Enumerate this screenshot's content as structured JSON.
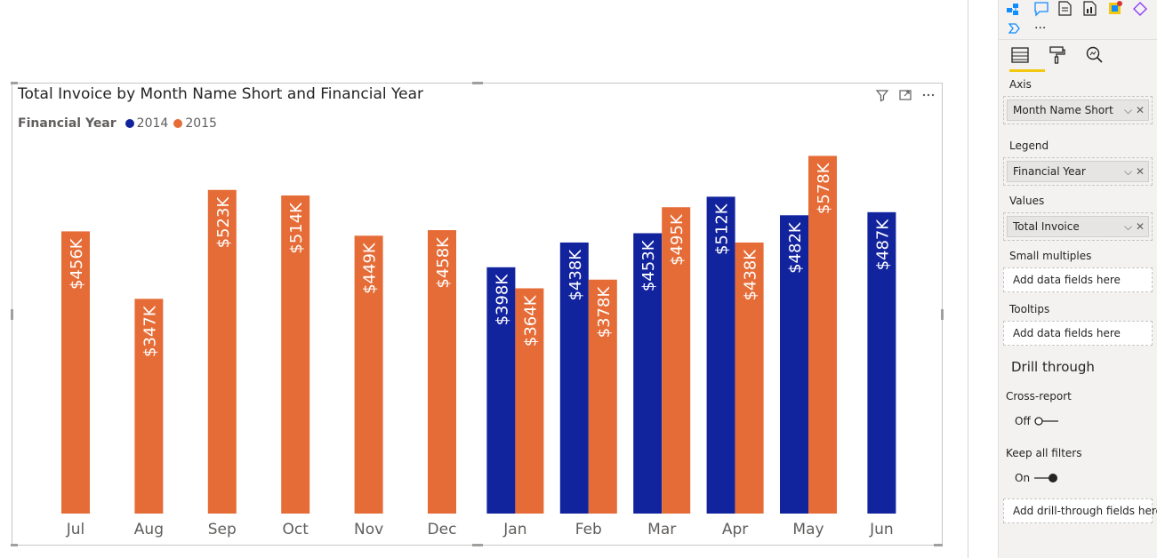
{
  "visual": {
    "title": "Total Invoice by Month Name Short and Financial Year",
    "legend_title": "Financial Year",
    "icons": [
      "filter-icon",
      "focus-mode-icon",
      "more-options-icon"
    ]
  },
  "chart_data": {
    "type": "bar",
    "title": "Total Invoice by Month Name Short and Financial Year",
    "xlabel": "",
    "ylabel": "",
    "legend": {
      "title": "Financial Year",
      "placement": "top-left"
    },
    "grid": false,
    "y_axis_visible": false,
    "ylim": [
      0,
      600
    ],
    "categories": [
      "Jul",
      "Aug",
      "Sep",
      "Oct",
      "Nov",
      "Dec",
      "Jan",
      "Feb",
      "Mar",
      "Apr",
      "May",
      "Jun"
    ],
    "series": [
      {
        "name": "2014",
        "color": "#12239e",
        "values": [
          null,
          null,
          null,
          null,
          null,
          null,
          398,
          438,
          453,
          512,
          482,
          487
        ],
        "labels": [
          "",
          "",
          "",
          "",
          "",
          "",
          "$398K",
          "$438K",
          "$453K",
          "$512K",
          "$482K",
          "$487K"
        ]
      },
      {
        "name": "2015",
        "color": "#e66c37",
        "values": [
          456,
          347,
          523,
          514,
          449,
          458,
          364,
          378,
          495,
          438,
          578,
          null
        ],
        "labels": [
          "$456K",
          "$347K",
          "$523K",
          "$514K",
          "$449K",
          "$458K",
          "$364K",
          "$378K",
          "$495K",
          "$438K",
          "$578K",
          ""
        ]
      }
    ]
  },
  "pane": {
    "axis": {
      "label": "Axis",
      "field": "Month Name Short"
    },
    "legend": {
      "label": "Legend",
      "field": "Financial Year"
    },
    "values": {
      "label": "Values",
      "field": "Total Invoice"
    },
    "small_multiples": {
      "label": "Small multiples",
      "placeholder": "Add data fields here"
    },
    "tooltips": {
      "label": "Tooltips",
      "placeholder": "Add data fields here"
    },
    "drill_through": {
      "title": "Drill through",
      "cross_report": {
        "label": "Cross-report",
        "state": "Off"
      },
      "keep_filters": {
        "label": "Keep all filters",
        "state": "On"
      },
      "placeholder": "Add drill-through fields here"
    },
    "more": "···"
  }
}
